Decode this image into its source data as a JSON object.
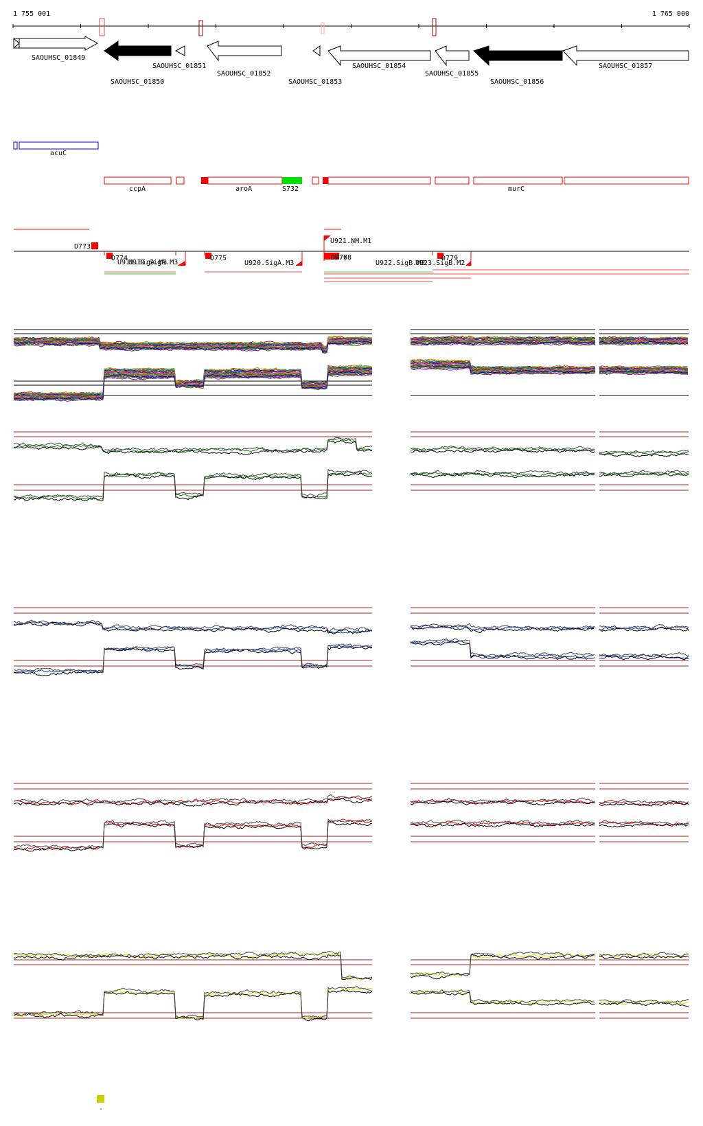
{
  "coordinates": {
    "start": "1 755 001",
    "end": "1 765 000"
  },
  "genes": [
    {
      "label": "SAOUHSC_01849",
      "strand": "+",
      "fill": "white"
    },
    {
      "label": "SAOUHSC_01850",
      "strand": "-",
      "fill": "black"
    },
    {
      "label": "SAOUHSC_01851",
      "strand": "-",
      "fill": "white"
    },
    {
      "label": "SAOUHSC_01852",
      "strand": "-",
      "fill": "white"
    },
    {
      "label": "SAOUHSC_01853",
      "strand": "-",
      "fill": "white"
    },
    {
      "label": "SAOUHSC_01854",
      "strand": "-",
      "fill": "white"
    },
    {
      "label": "SAOUHSC_01855",
      "strand": "-",
      "fill": "white"
    },
    {
      "label": "SAOUHSC_01856",
      "strand": "-",
      "fill": "black"
    },
    {
      "label": "SAOUHSC_01857",
      "strand": "-",
      "fill": "white"
    }
  ],
  "blue_features": [
    "acuC"
  ],
  "red_features": [
    "ccpA",
    "aroA",
    "S732",
    "murC"
  ],
  "transcripts": [
    "D773",
    "D774",
    "U919.SigA.M3",
    "D775",
    "U920.SigA.M3",
    "U921.NM.M1",
    "D776",
    "D778",
    "U922.SigB.M2",
    "U923.SigB.M2",
    "D779"
  ],
  "transcript_overlap_text": "U919.SigA.M3",
  "colors": {
    "gene_black": "#000000",
    "blue_feature": "#0000cc",
    "red_feature": "#ff0000",
    "green_feature": "#00dd00",
    "panel_a": "#008800",
    "panel_b": "#0033bb",
    "panel_c": "#dd0000",
    "panel_d": "#dddd00",
    "reference_line": "#aa2222",
    "legend_swatch": "#c8d000"
  },
  "legend_label": "-"
}
